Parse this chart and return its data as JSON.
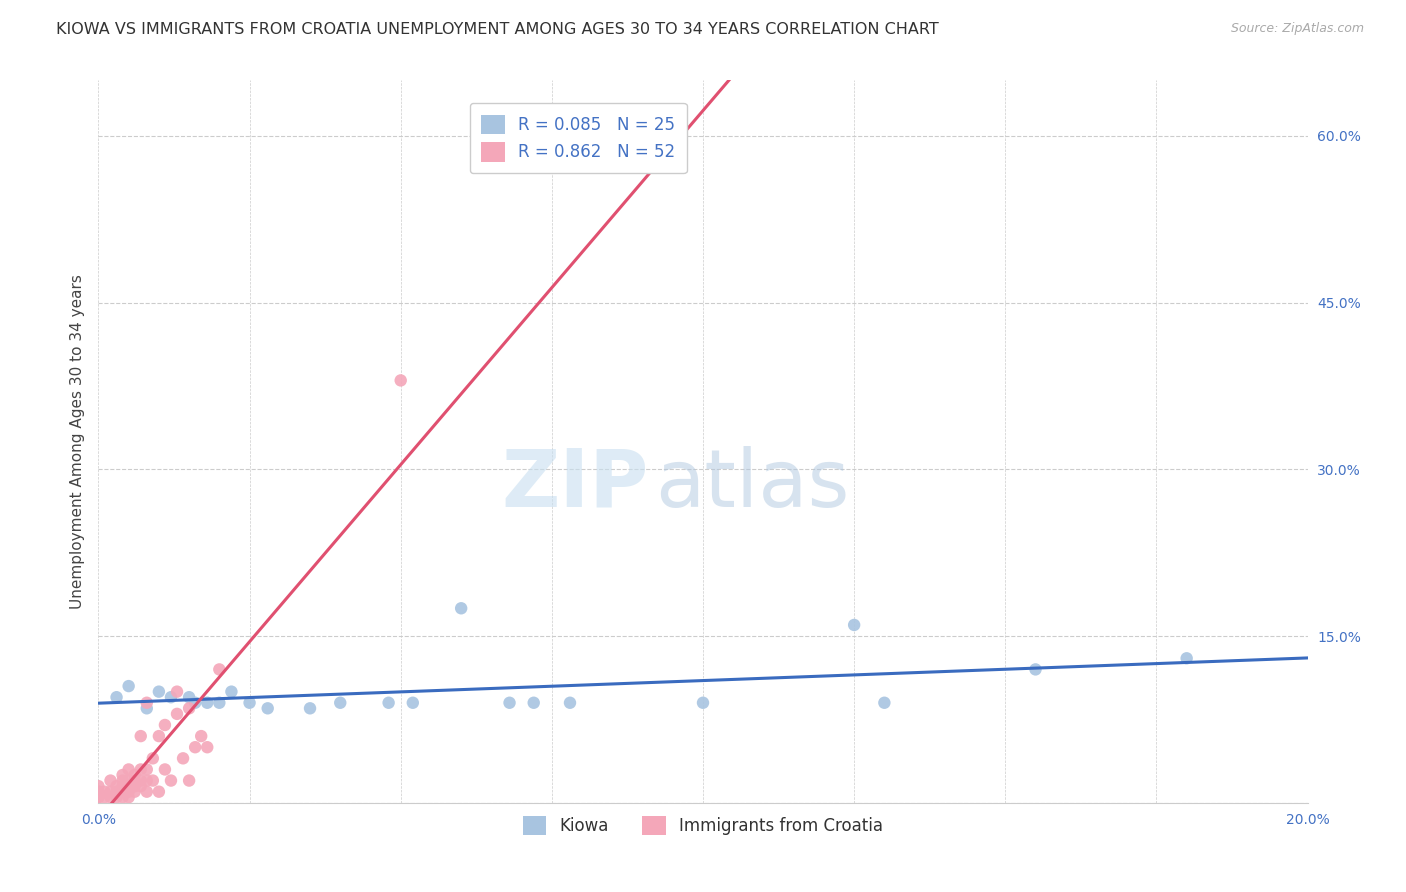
{
  "title": "KIOWA VS IMMIGRANTS FROM CROATIA UNEMPLOYMENT AMONG AGES 30 TO 34 YEARS CORRELATION CHART",
  "source": "Source: ZipAtlas.com",
  "ylabel": "Unemployment Among Ages 30 to 34 years",
  "watermark_zip": "ZIP",
  "watermark_atlas": "atlas",
  "xlim": [
    0.0,
    0.2
  ],
  "ylim": [
    0.0,
    0.65
  ],
  "xticks": [
    0.0,
    0.025,
    0.05,
    0.075,
    0.1,
    0.125,
    0.15,
    0.175,
    0.2
  ],
  "yticks_right": [
    0.0,
    0.15,
    0.3,
    0.45,
    0.6
  ],
  "ytick_labels_right": [
    "",
    "15.0%",
    "30.0%",
    "45.0%",
    "60.0%"
  ],
  "grid_color": "#cccccc",
  "background_color": "#ffffff",
  "series": [
    {
      "name": "Kiowa",
      "color": "#a8c4e0",
      "line_color": "#3a6bbf",
      "R": 0.085,
      "N": 25,
      "x": [
        0.003,
        0.005,
        0.008,
        0.01,
        0.012,
        0.015,
        0.016,
        0.018,
        0.02,
        0.022,
        0.025,
        0.028,
        0.035,
        0.04,
        0.048,
        0.052,
        0.06,
        0.068,
        0.072,
        0.078,
        0.1,
        0.125,
        0.13,
        0.155,
        0.18
      ],
      "y": [
        0.095,
        0.105,
        0.085,
        0.1,
        0.095,
        0.095,
        0.09,
        0.09,
        0.09,
        0.1,
        0.09,
        0.085,
        0.085,
        0.09,
        0.09,
        0.09,
        0.175,
        0.09,
        0.09,
        0.09,
        0.09,
        0.16,
        0.09,
        0.12,
        0.13
      ]
    },
    {
      "name": "Immigrants from Croatia",
      "color": "#f4a7b9",
      "line_color": "#e05070",
      "R": 0.862,
      "N": 52,
      "x": [
        0.0,
        0.0,
        0.0,
        0.0,
        0.0,
        0.001,
        0.001,
        0.002,
        0.002,
        0.002,
        0.003,
        0.003,
        0.003,
        0.004,
        0.004,
        0.004,
        0.004,
        0.004,
        0.005,
        0.005,
        0.005,
        0.005,
        0.005,
        0.006,
        0.006,
        0.006,
        0.006,
        0.007,
        0.007,
        0.007,
        0.007,
        0.008,
        0.008,
        0.008,
        0.008,
        0.009,
        0.009,
        0.01,
        0.01,
        0.011,
        0.011,
        0.012,
        0.013,
        0.013,
        0.014,
        0.015,
        0.015,
        0.016,
        0.017,
        0.018,
        0.05,
        0.02
      ],
      "y": [
        0.005,
        0.01,
        0.015,
        0.005,
        0.01,
        0.005,
        0.01,
        0.005,
        0.01,
        0.02,
        0.005,
        0.01,
        0.015,
        0.005,
        0.01,
        0.015,
        0.02,
        0.025,
        0.005,
        0.01,
        0.015,
        0.02,
        0.03,
        0.01,
        0.015,
        0.02,
        0.025,
        0.015,
        0.02,
        0.03,
        0.06,
        0.01,
        0.02,
        0.03,
        0.09,
        0.02,
        0.04,
        0.01,
        0.06,
        0.03,
        0.07,
        0.02,
        0.08,
        0.1,
        0.04,
        0.02,
        0.085,
        0.05,
        0.06,
        0.05,
        0.38,
        0.12
      ]
    }
  ],
  "title_fontsize": 11.5,
  "axis_label_fontsize": 11,
  "tick_fontsize": 10,
  "legend_fontsize": 12,
  "source_fontsize": 9,
  "marker_size": 80
}
